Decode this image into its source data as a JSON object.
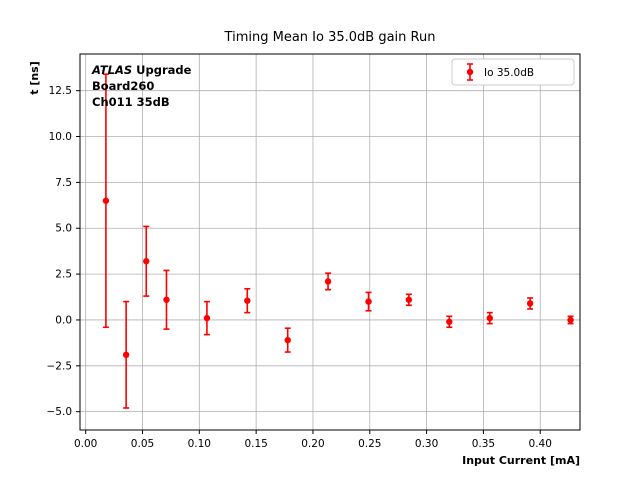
{
  "title": "Timing Mean Io 35.0dB gain Run",
  "annotation": {
    "line1_italic": "ATLAS",
    "line1_bold": " Upgrade",
    "line2": "Board260",
    "line3": "Ch011 35dB"
  },
  "legend": {
    "label": "Io 35.0dB",
    "marker_color": "#ff0000",
    "position": "upper right"
  },
  "colors": {
    "accent": "#ff0000",
    "grid": "#b0b0b0",
    "axis": "#000000",
    "background": "#ffffff"
  },
  "chart_data": {
    "type": "scatter",
    "title": "Timing Mean Io 35.0dB gain Run",
    "xlabel": "Input Current [mA]",
    "ylabel": "t [ns]",
    "xlim": [
      -0.005,
      0.435
    ],
    "ylim": [
      -6.0,
      14.5
    ],
    "grid": true,
    "legend_position": "upper right",
    "x_ticks": [
      0.0,
      0.05,
      0.1,
      0.15,
      0.2,
      0.25,
      0.3,
      0.35,
      0.4
    ],
    "x_tick_labels": [
      "0.00",
      "0.05",
      "0.10",
      "0.15",
      "0.20",
      "0.25",
      "0.30",
      "0.35",
      "0.40"
    ],
    "y_ticks": [
      -5.0,
      -2.5,
      0.0,
      2.5,
      5.0,
      7.5,
      10.0,
      12.5
    ],
    "y_tick_labels": [
      "−5.0",
      "−2.5",
      "0.0",
      "2.5",
      "5.0",
      "7.5",
      "10.0",
      "12.5"
    ],
    "series": [
      {
        "name": "Io 35.0dB",
        "color": "#ff0000",
        "marker": "circle",
        "x": [
          0.0178,
          0.0356,
          0.0533,
          0.0711,
          0.1067,
          0.1422,
          0.1778,
          0.2133,
          0.2489,
          0.2844,
          0.32,
          0.3556,
          0.3911,
          0.4267
        ],
        "y": [
          6.5,
          -1.9,
          3.2,
          1.1,
          0.1,
          1.05,
          -1.1,
          2.1,
          1.0,
          1.1,
          -0.1,
          0.1,
          0.9,
          0.0
        ],
        "yerr": [
          6.9,
          2.9,
          1.9,
          1.6,
          0.9,
          0.65,
          0.65,
          0.45,
          0.5,
          0.3,
          0.3,
          0.3,
          0.3,
          0.2
        ]
      }
    ]
  }
}
